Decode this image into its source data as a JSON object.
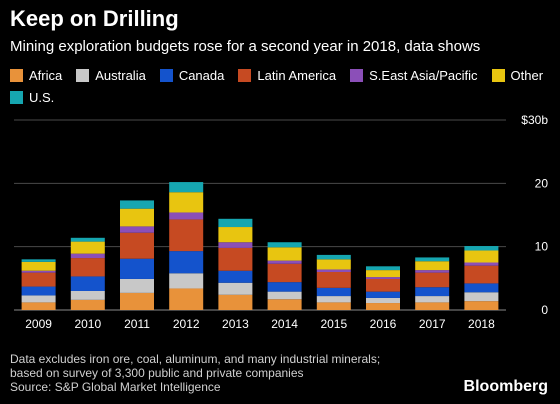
{
  "header": {
    "title": "Keep on Drilling",
    "subtitle": "Mining exploration budgets rose for a second year in 2018, data shows"
  },
  "footer": {
    "note_line1": "Data excludes iron ore, coal, aluminum, and many industrial minerals;",
    "note_line2": "based on survey of 3,300 public and private companies",
    "source": "Source: S&P Global Market Intelligence",
    "brand": "Bloomberg"
  },
  "chart_data": {
    "type": "bar",
    "stacked": true,
    "categories": [
      "2009",
      "2010",
      "2011",
      "2012",
      "2013",
      "2014",
      "2015",
      "2016",
      "2017",
      "2018"
    ],
    "series": [
      {
        "name": "Africa",
        "color": "#e8923a",
        "values": [
          1.2,
          1.6,
          2.7,
          3.4,
          2.4,
          1.7,
          1.2,
          1.1,
          1.2,
          1.4
        ]
      },
      {
        "name": "Australia",
        "color": "#c8c8c8",
        "values": [
          1.1,
          1.4,
          2.2,
          2.4,
          1.9,
          1.2,
          1.0,
          0.8,
          1.0,
          1.4
        ]
      },
      {
        "name": "Canada",
        "color": "#1453cc",
        "values": [
          1.4,
          2.3,
          3.2,
          3.5,
          1.9,
          1.5,
          1.3,
          1.0,
          1.4,
          1.4
        ]
      },
      {
        "name": "Latin America",
        "color": "#c64a22",
        "values": [
          2.2,
          2.9,
          4.1,
          5.0,
          3.6,
          2.9,
          2.5,
          2.0,
          2.3,
          2.8
        ]
      },
      {
        "name": "S.East Asia/Pacific",
        "color": "#8b4fb8",
        "values": [
          0.3,
          0.7,
          1.0,
          1.1,
          0.9,
          0.5,
          0.4,
          0.3,
          0.4,
          0.5
        ]
      },
      {
        "name": "Other",
        "color": "#e8c510",
        "values": [
          1.4,
          1.9,
          2.8,
          3.2,
          2.4,
          2.1,
          1.6,
          1.1,
          1.4,
          1.9
        ]
      },
      {
        "name": "U.S.",
        "color": "#16a6b0",
        "values": [
          0.4,
          0.6,
          1.3,
          1.6,
          1.3,
          0.8,
          0.7,
          0.6,
          0.6,
          0.7
        ]
      }
    ],
    "yticks": [
      0,
      10,
      20,
      30
    ],
    "ytick_labels": [
      "0",
      "10",
      "20",
      "$30b"
    ],
    "ylim": [
      0,
      30
    ],
    "grid": true,
    "legend": "top"
  }
}
